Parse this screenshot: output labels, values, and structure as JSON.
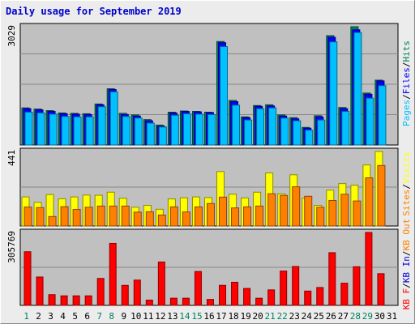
{
  "title": "Daily usage for September 2019",
  "colors": {
    "hits": "#00805c",
    "files": "#0000ff",
    "pages": "#00c0ff",
    "visits": "#ffff00",
    "sites": "#ff8000",
    "kb_in": "#0000cc",
    "kb_out": "#ff8000",
    "kb_f": "#ff0000"
  },
  "chart_data": [
    {
      "type": "bar",
      "ymax": 3029,
      "ymax_label": "3029",
      "ylabel_parts": [
        "Pages",
        "/",
        "Files",
        "/",
        "Hits"
      ],
      "categories": [
        "1",
        "2",
        "3",
        "4",
        "5",
        "6",
        "7",
        "8",
        "9",
        "10",
        "11",
        "12",
        "13",
        "14",
        "15",
        "16",
        "17",
        "18",
        "19",
        "20",
        "21",
        "22",
        "23",
        "24",
        "25",
        "26",
        "27",
        "28",
        "29",
        "30",
        "31"
      ],
      "weekend_days": [
        "1",
        "7",
        "8",
        "14",
        "15",
        "21",
        "22",
        "28",
        "29"
      ],
      "series": [
        {
          "name": "Hits",
          "values": [
            950,
            920,
            880,
            820,
            810,
            800,
            1050,
            1440,
            810,
            770,
            650,
            510,
            840,
            870,
            860,
            840,
            2650,
            1140,
            720,
            1010,
            1030,
            770,
            700,
            450,
            750,
            2800,
            960,
            3029,
            1330,
            1660,
            0
          ]
        },
        {
          "name": "Files",
          "values": [
            930,
            900,
            860,
            800,
            790,
            780,
            1030,
            1420,
            780,
            740,
            620,
            480,
            820,
            860,
            850,
            830,
            2620,
            1110,
            700,
            990,
            1000,
            740,
            670,
            430,
            720,
            2760,
            930,
            2950,
            1300,
            1640,
            0
          ]
        },
        {
          "name": "Pages",
          "values": [
            840,
            820,
            790,
            730,
            720,
            720,
            980,
            1360,
            730,
            690,
            560,
            460,
            760,
            800,
            790,
            780,
            2520,
            1020,
            640,
            930,
            950,
            690,
            620,
            380,
            640,
            2640,
            860,
            2880,
            1200,
            1520,
            0
          ]
        }
      ]
    },
    {
      "type": "bar",
      "ymax": 441,
      "ymax_label": "441",
      "ylabel_parts": [
        "Sites",
        "/",
        "Visits"
      ],
      "categories": [
        "1",
        "2",
        "3",
        "4",
        "5",
        "6",
        "7",
        "8",
        "9",
        "10",
        "11",
        "12",
        "13",
        "14",
        "15",
        "16",
        "17",
        "18",
        "19",
        "20",
        "21",
        "22",
        "23",
        "24",
        "25",
        "26",
        "27",
        "28",
        "29",
        "30",
        "31"
      ],
      "series": [
        {
          "name": "Visits",
          "values": [
            172,
            140,
            186,
            161,
            172,
            183,
            182,
            200,
            164,
            111,
            122,
            99,
            160,
            167,
            172,
            168,
            322,
            188,
            166,
            200,
            314,
            190,
            303,
            164,
            122,
            212,
            251,
            241,
            361,
            441,
            0
          ]
        },
        {
          "name": "Sites",
          "values": [
            112,
            109,
            56,
            114,
            98,
            111,
            118,
            118,
            118,
            82,
            84,
            65,
            113,
            83,
            113,
            133,
            171,
            107,
            113,
            118,
            191,
            181,
            232,
            176,
            111,
            151,
            188,
            148,
            285,
            358,
            0
          ]
        }
      ]
    },
    {
      "type": "bar",
      "ymax": 305769,
      "ymax_label": "305769",
      "ylabel_parts": [
        "KB F",
        "/",
        "KB In",
        "/",
        "KB Out"
      ],
      "categories": [
        "1",
        "2",
        "3",
        "4",
        "5",
        "6",
        "7",
        "8",
        "9",
        "10",
        "11",
        "12",
        "13",
        "14",
        "15",
        "16",
        "17",
        "18",
        "19",
        "20",
        "21",
        "22",
        "23",
        "24",
        "25",
        "26",
        "27",
        "28",
        "29",
        "30",
        "31"
      ],
      "series": [
        {
          "name": "KB F",
          "values": [
            225000,
            119000,
            45000,
            40000,
            40000,
            40000,
            113000,
            260000,
            84000,
            106000,
            22000,
            182000,
            30000,
            30000,
            142000,
            25000,
            84000,
            97000,
            71000,
            30000,
            65000,
            144000,
            163000,
            60000,
            75000,
            221000,
            93000,
            162000,
            305769,
            133000,
            0
          ]
        }
      ]
    }
  ]
}
